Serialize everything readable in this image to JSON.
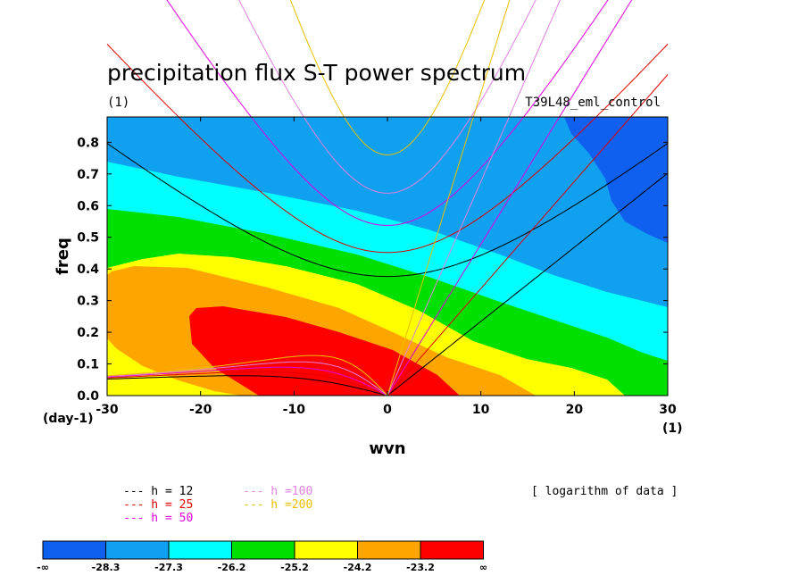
{
  "chart_data": {
    "type": "contour",
    "title": "precipitation flux S-T power spectrum",
    "subtitle_left": "(1)",
    "subtitle_right": "T39L48_eml_control",
    "xlabel": "wvn",
    "ylabel": "freq",
    "x_unit_label": "(1)",
    "y_unit_label": "(day-1)",
    "xlim": [
      -30,
      30
    ],
    "ylim": [
      0,
      0.88
    ],
    "xticks": [
      "-30",
      "-20",
      "-10",
      "0",
      "10",
      "20",
      "30"
    ],
    "yticks": [
      "0.0",
      "0.1",
      "0.2",
      "0.3",
      "0.4",
      "0.5",
      "0.6",
      "0.7",
      "0.8"
    ],
    "note": "[ logarithm of data ]",
    "contour_levels": [
      "-∞",
      "-28.3",
      "-27.3",
      "-26.2",
      "-25.2",
      "-24.2",
      "-23.2",
      "∞"
    ],
    "fill_colors": [
      "#1060f0",
      "#10a0f0",
      "#00ffff",
      "#00e000",
      "#ffff00",
      "#ffa500",
      "#ff0000"
    ],
    "dispersion_curves": [
      {
        "label": "h = 12",
        "color": "#000000"
      },
      {
        "label": "h = 25",
        "color": "#e00000"
      },
      {
        "label": "h = 50",
        "color": "#e000e0"
      },
      {
        "label": "h =100",
        "color": "#e080e0"
      },
      {
        "label": "h =200",
        "color": "#e8c000"
      }
    ]
  }
}
